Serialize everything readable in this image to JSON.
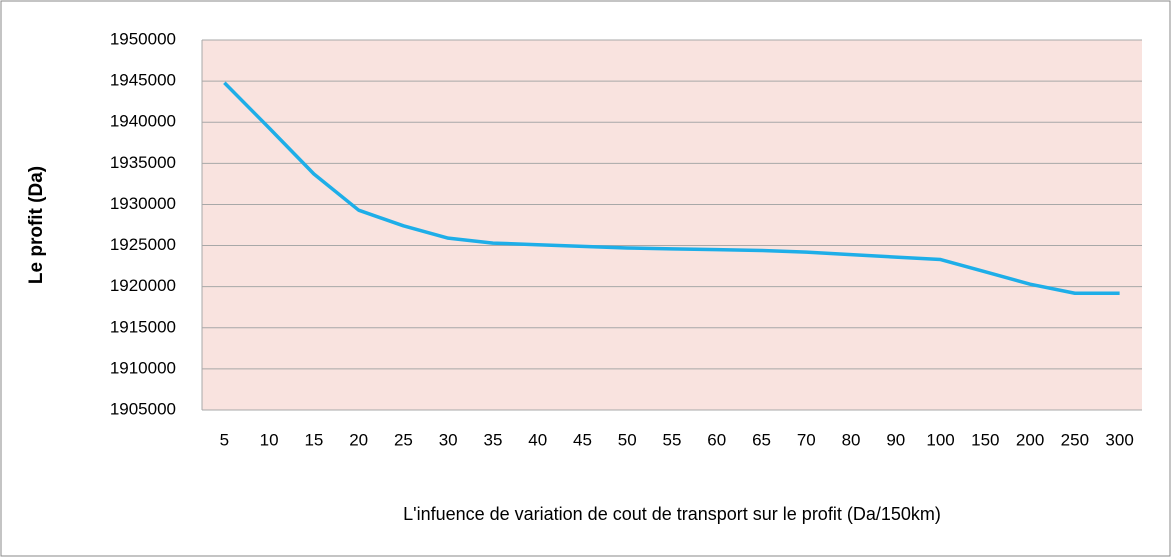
{
  "chart_data": {
    "type": "line",
    "y_label": "Le profit (Da)",
    "x_label": "L'infuence de variation de cout de transport sur le profit (Da/150km)",
    "categories": [
      5,
      10,
      15,
      20,
      25,
      30,
      35,
      40,
      45,
      50,
      55,
      60,
      65,
      70,
      80,
      90,
      100,
      150,
      200,
      250,
      300
    ],
    "series": [
      {
        "color": "#1eaee8",
        "values": [
          1944800,
          1939300,
          1933700,
          1929300,
          1927400,
          1925900,
          1925300,
          1925100,
          1924900,
          1924700,
          1924600,
          1924500,
          1924400,
          1924200,
          1923900,
          1923600,
          1923300,
          1921800,
          1920300,
          1919200,
          1919200
        ]
      }
    ],
    "ylim": [
      1905000,
      1950000
    ],
    "yticks": [
      1905000,
      1910000,
      1915000,
      1920000,
      1925000,
      1930000,
      1935000,
      1940000,
      1945000,
      1950000
    ],
    "grid": true
  }
}
